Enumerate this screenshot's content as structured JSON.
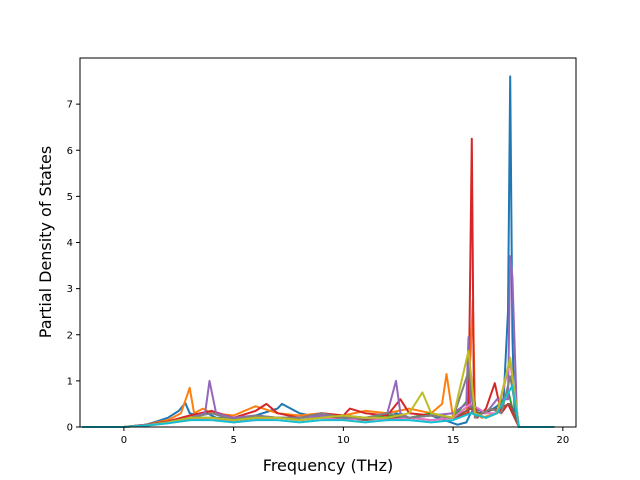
{
  "chart_data": {
    "type": "line",
    "title": "",
    "xlabel": "Frequency (THz)",
    "ylabel": "Partial Density of States",
    "xlim": [
      -2.0,
      20.6
    ],
    "ylim": [
      0,
      8.0
    ],
    "xticks": [
      0,
      5,
      10,
      15,
      20
    ],
    "yticks": [
      0,
      1,
      2,
      3,
      4,
      5,
      6,
      7
    ],
    "xtick_labels": [
      "0",
      "5",
      "10",
      "15",
      "20"
    ],
    "ytick_labels": [
      "0",
      "1",
      "2",
      "3",
      "4",
      "5",
      "6",
      "7"
    ],
    "grid": false,
    "legend": "none",
    "series": [
      {
        "color": "#1f77b4",
        "x": [
          -1.9,
          0,
          0.5,
          1,
          1.5,
          2,
          2.5,
          2.8,
          3,
          3.3,
          3.8,
          4.2,
          5,
          6,
          7,
          7.2,
          8,
          9,
          10,
          11,
          12,
          12.4,
          13,
          14,
          14.6,
          15.2,
          15.6,
          15.8,
          16,
          16.5,
          17,
          17.3,
          17.5,
          17.6,
          17.7,
          17.8,
          18,
          19.6
        ],
        "y": [
          0,
          0,
          0.02,
          0.05,
          0.12,
          0.2,
          0.35,
          0.52,
          0.3,
          0.25,
          0.3,
          0.2,
          0.18,
          0.25,
          0.4,
          0.5,
          0.3,
          0.2,
          0.25,
          0.2,
          0.15,
          0.3,
          0.2,
          0.25,
          0.15,
          0.05,
          0.1,
          0.3,
          0.4,
          0.3,
          0.45,
          0.6,
          2.5,
          7.6,
          2.0,
          0.3,
          0,
          0
        ]
      },
      {
        "color": "#ff7f0e",
        "x": [
          -1.9,
          0,
          1,
          2,
          2.6,
          3,
          3.2,
          3.6,
          4,
          5,
          6,
          7,
          8,
          9,
          10,
          11,
          12,
          13,
          14,
          14.5,
          14.7,
          15,
          15.6,
          15.8,
          15.9,
          16,
          16.3,
          17,
          17.5,
          17.8,
          18,
          19.6
        ],
        "y": [
          0,
          0,
          0.05,
          0.15,
          0.3,
          0.85,
          0.3,
          0.4,
          0.3,
          0.25,
          0.45,
          0.3,
          0.25,
          0.3,
          0.25,
          0.35,
          0.3,
          0.4,
          0.3,
          0.5,
          1.15,
          0.2,
          0.3,
          1.6,
          2.75,
          0.4,
          0.2,
          0.3,
          0.5,
          0.3,
          0,
          0
        ]
      },
      {
        "color": "#2ca02c",
        "x": [
          -1.9,
          0,
          1,
          2,
          3,
          4,
          5,
          6,
          7,
          8,
          9,
          10,
          11,
          12,
          13,
          14,
          15,
          15.7,
          16,
          16.5,
          17,
          17.5,
          17.7,
          18,
          19.6
        ],
        "y": [
          0,
          0,
          0.05,
          0.1,
          0.2,
          0.2,
          0.15,
          0.2,
          0.2,
          0.2,
          0.25,
          0.2,
          0.2,
          0.25,
          0.2,
          0.3,
          0.2,
          0.6,
          0.3,
          0.2,
          0.3,
          0.8,
          0.4,
          0,
          0
        ]
      },
      {
        "color": "#d62728",
        "x": [
          -1.9,
          0,
          1,
          2,
          3,
          4,
          5,
          6,
          6.5,
          7,
          8,
          9,
          10,
          10.3,
          11,
          12,
          12.6,
          13,
          14,
          15,
          15.7,
          15.85,
          15.95,
          16.1,
          16.5,
          16.9,
          17.2,
          17.5,
          18,
          19.6
        ],
        "y": [
          0,
          0,
          0.05,
          0.12,
          0.25,
          0.35,
          0.2,
          0.35,
          0.5,
          0.3,
          0.2,
          0.3,
          0.25,
          0.4,
          0.3,
          0.25,
          0.6,
          0.3,
          0.25,
          0.2,
          0.3,
          6.25,
          0.6,
          0.2,
          0.4,
          0.95,
          0.3,
          0.5,
          0,
          0
        ]
      },
      {
        "color": "#9467bd",
        "x": [
          -1.9,
          0,
          1,
          2,
          3,
          3.7,
          3.9,
          4.2,
          5,
          6,
          7,
          8,
          9,
          10,
          11,
          12,
          12.4,
          12.6,
          13,
          14,
          15,
          15.6,
          15.7,
          15.8,
          16,
          16.5,
          17,
          17.5,
          17.6,
          17.7,
          17.9,
          18,
          19.6
        ],
        "y": [
          0,
          0,
          0.05,
          0.1,
          0.2,
          0.3,
          1.0,
          0.3,
          0.2,
          0.25,
          0.2,
          0.2,
          0.25,
          0.2,
          0.2,
          0.3,
          1.0,
          0.3,
          0.2,
          0.25,
          0.3,
          0.5,
          1.95,
          0.4,
          0.3,
          0.3,
          0.6,
          0.6,
          3.7,
          3.25,
          0.4,
          0,
          0
        ]
      },
      {
        "color": "#8c564b",
        "x": [
          -1.9,
          0,
          1,
          2,
          3,
          4,
          5,
          6,
          7,
          8,
          9,
          10,
          11,
          12,
          13,
          14,
          15,
          15.8,
          16.2,
          17,
          17.6,
          18,
          19.6
        ],
        "y": [
          0,
          0,
          0.04,
          0.1,
          0.15,
          0.2,
          0.15,
          0.2,
          0.2,
          0.15,
          0.2,
          0.2,
          0.15,
          0.2,
          0.2,
          0.15,
          0.2,
          0.4,
          0.3,
          0.4,
          0.5,
          0,
          0
        ]
      },
      {
        "color": "#e377c2",
        "x": [
          -1.9,
          0,
          1,
          2,
          3,
          4,
          5,
          6,
          7,
          8,
          9,
          10,
          11,
          12,
          13,
          14,
          15,
          15.8,
          16.5,
          17,
          17.6,
          18,
          19.6
        ],
        "y": [
          0,
          0,
          0.03,
          0.08,
          0.15,
          0.2,
          0.1,
          0.15,
          0.2,
          0.15,
          0.2,
          0.15,
          0.2,
          0.15,
          0.2,
          0.15,
          0.2,
          0.5,
          0.3,
          0.3,
          1.4,
          0,
          0
        ]
      },
      {
        "color": "#7f7f7f",
        "x": [
          -1.9,
          0,
          1,
          2,
          3,
          4,
          5,
          6,
          7,
          8,
          9,
          10,
          11,
          12,
          13,
          14,
          15,
          15.7,
          16,
          16.7,
          17.2,
          17.6,
          18,
          19.6
        ],
        "y": [
          0,
          0,
          0.04,
          0.1,
          0.2,
          0.3,
          0.15,
          0.25,
          0.2,
          0.2,
          0.3,
          0.2,
          0.2,
          0.3,
          0.2,
          0.25,
          0.2,
          1.2,
          0.2,
          0.4,
          0.3,
          1.1,
          0,
          0
        ]
      },
      {
        "color": "#bcbd22",
        "x": [
          -1.9,
          0,
          1,
          2,
          3,
          4,
          5,
          6,
          7,
          8,
          9,
          10,
          11,
          12,
          13,
          13.6,
          14,
          15,
          15.7,
          16,
          16.5,
          17,
          17.6,
          18,
          19.6
        ],
        "y": [
          0,
          0,
          0.03,
          0.1,
          0.2,
          0.2,
          0.15,
          0.2,
          0.2,
          0.15,
          0.2,
          0.25,
          0.2,
          0.2,
          0.3,
          0.75,
          0.3,
          0.2,
          1.65,
          0.3,
          0.2,
          0.3,
          1.5,
          0,
          0
        ]
      },
      {
        "color": "#17becf",
        "x": [
          -1.9,
          0,
          1,
          2,
          3,
          4,
          5,
          6,
          7,
          8,
          9,
          10,
          11,
          12,
          13,
          14,
          15,
          15.8,
          16.5,
          17,
          17.7,
          18,
          19.6
        ],
        "y": [
          0,
          0,
          0.03,
          0.08,
          0.15,
          0.15,
          0.1,
          0.15,
          0.15,
          0.1,
          0.15,
          0.15,
          0.1,
          0.15,
          0.15,
          0.1,
          0.15,
          0.3,
          0.2,
          0.3,
          0.9,
          0,
          0
        ]
      }
    ]
  }
}
